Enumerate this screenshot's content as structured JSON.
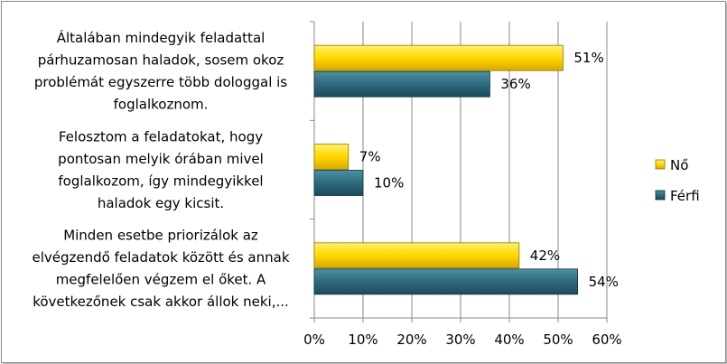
{
  "chart_data": {
    "type": "bar",
    "orientation": "horizontal",
    "categories": [
      [
        "Általában mindegyik feladattal",
        "párhuzamosan haladok, sosem okoz",
        "problémát egyszerre több dologgal is",
        "foglalkoznom."
      ],
      [
        "Felosztom a feladatokat, hogy",
        "pontosan melyik órában mivel",
        "foglalkozom, így mindegyikkel",
        "haladok egy kicsit."
      ],
      [
        "Minden esetbe priorizálok az",
        "elvégzendő feladatok között és annak",
        "megfelelően végzem el őket. A",
        "következőnek csak akkor állok neki,..."
      ]
    ],
    "series": [
      {
        "name": "Nő",
        "values": [
          51,
          7,
          42
        ],
        "labels": [
          "51%",
          "7%",
          "42%"
        ],
        "color": "#FFD700"
      },
      {
        "name": "Férfi",
        "values": [
          36,
          10,
          54
        ],
        "labels": [
          "36%",
          "10%",
          "54%"
        ],
        "color": "#2E6A7D"
      }
    ],
    "xlim": [
      0,
      60
    ],
    "xticks": [
      "0%",
      "10%",
      "20%",
      "30%",
      "40%",
      "50%",
      "60%"
    ],
    "grid": true,
    "legend": "right"
  }
}
